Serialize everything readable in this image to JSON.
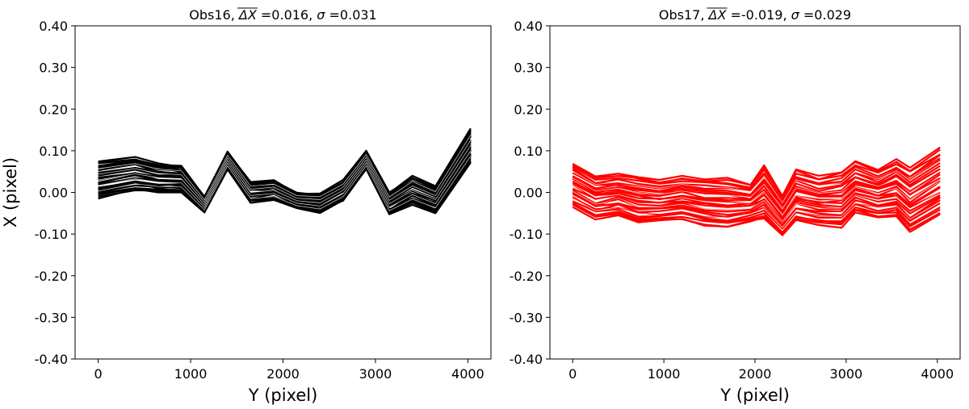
{
  "chart_data": [
    {
      "type": "line",
      "title_prefix": "Obs16,",
      "title_stat": "=0.016, ",
      "title_sigma": "=0.031",
      "title_delta": "ΔX",
      "title_sigma_symbol": "σ",
      "xlabel": "Y (pixel)",
      "ylabel": "X (pixel)",
      "xlim": [
        -250,
        4250
      ],
      "ylim": [
        -0.4,
        0.4
      ],
      "xticks": [
        0,
        1000,
        2000,
        3000,
        4000
      ],
      "yticks": [
        -0.4,
        -0.3,
        -0.2,
        -0.1,
        0.0,
        0.1,
        0.2,
        0.3,
        0.4
      ],
      "ytick_labels": [
        "-0.40",
        "-0.30",
        "-0.20",
        "-0.10",
        "0.00",
        "0.10",
        "0.20",
        "0.30",
        "0.40"
      ],
      "color": "#000000",
      "num_series": 28,
      "x": [
        0,
        400,
        650,
        900,
        1150,
        1400,
        1650,
        1900,
        2150,
        2400,
        2650,
        2900,
        3150,
        3400,
        3650,
        4030
      ],
      "series_low": [
        -0.015,
        0.005,
        0.0,
        0.0,
        -0.05,
        0.055,
        -0.025,
        -0.02,
        -0.04,
        -0.05,
        -0.02,
        0.055,
        -0.055,
        -0.03,
        -0.05,
        0.07
      ],
      "series_high": [
        0.075,
        0.085,
        0.07,
        0.065,
        -0.01,
        0.098,
        0.025,
        0.03,
        0.0,
        0.0,
        0.03,
        0.1,
        0.0,
        0.04,
        0.015,
        0.155
      ]
    },
    {
      "type": "line",
      "title_prefix": "Obs17,",
      "title_stat": "=-0.019, ",
      "title_sigma": "=0.029",
      "title_delta": "ΔX",
      "title_sigma_symbol": "σ",
      "xlabel": "Y (pixel)",
      "ylabel": "",
      "xlim": [
        -250,
        4250
      ],
      "ylim": [
        -0.4,
        0.4
      ],
      "xticks": [
        0,
        1000,
        2000,
        3000,
        4000
      ],
      "yticks": [
        -0.4,
        -0.3,
        -0.2,
        -0.1,
        0.0,
        0.1,
        0.2,
        0.3,
        0.4
      ],
      "ytick_labels": [
        "-0.40",
        "-0.30",
        "-0.20",
        "-0.10",
        "0.00",
        "0.10",
        "0.20",
        "0.30",
        "0.40"
      ],
      "color": "#ff0000",
      "num_series": 26,
      "x": [
        0,
        250,
        500,
        720,
        950,
        1200,
        1450,
        1700,
        1950,
        2100,
        2300,
        2450,
        2700,
        2950,
        3100,
        3350,
        3550,
        3700,
        4030
      ],
      "series_low": [
        -0.035,
        -0.065,
        -0.055,
        -0.075,
        -0.07,
        -0.065,
        -0.08,
        -0.085,
        -0.07,
        -0.065,
        -0.105,
        -0.07,
        -0.08,
        -0.085,
        -0.05,
        -0.06,
        -0.06,
        -0.095,
        -0.055
      ],
      "series_high": [
        0.072,
        0.04,
        0.045,
        0.04,
        0.03,
        0.04,
        0.035,
        0.035,
        0.02,
        0.065,
        -0.005,
        0.055,
        0.04,
        0.05,
        0.075,
        0.055,
        0.08,
        0.06,
        0.108
      ]
    }
  ]
}
